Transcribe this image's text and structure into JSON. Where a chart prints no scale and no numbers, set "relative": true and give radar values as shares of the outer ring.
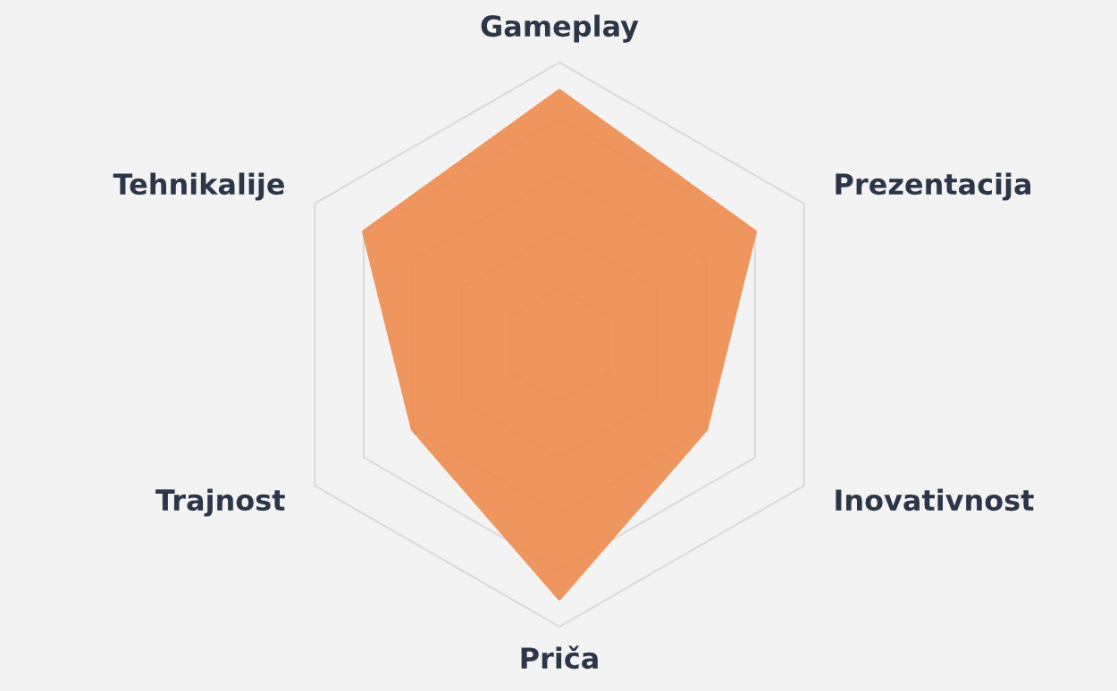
{
  "chart_data": {
    "type": "radar",
    "relative": true,
    "grid": true,
    "categories": [
      "Gameplay",
      "Prezentacija",
      "Inovativnost",
      "Priča",
      "Trajnost",
      "Tehnikalije"
    ],
    "series": [
      {
        "color": "#ef8c4f",
        "values": [
          0.9,
          0.8,
          0.6,
          0.9,
          0.6,
          0.8
        ]
      }
    ]
  }
}
